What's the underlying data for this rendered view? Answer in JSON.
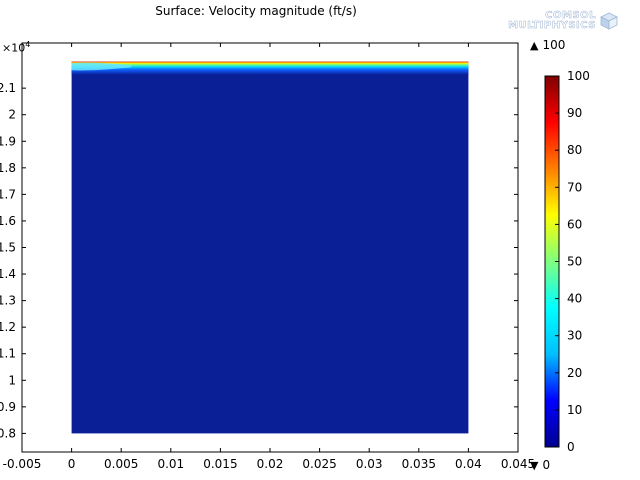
{
  "chart_data": {
    "type": "heatmap",
    "title": "Surface: Velocity magnitude (ft/s)",
    "xlabel": "",
    "ylabel": "",
    "x_ticks": [
      "-0.005",
      "0",
      "0.005",
      "0.01",
      "0.015",
      "0.02",
      "0.025",
      "0.03",
      "0.035",
      "0.04",
      "0.045"
    ],
    "y_ticks": [
      "0.8",
      "0.9",
      "1",
      "1.1",
      "1.2",
      "1.3",
      "1.4",
      "1.5",
      "1.6",
      "1.7",
      "1.8",
      "1.9",
      "2",
      "2.1"
    ],
    "y_multiplier": "×10",
    "y_multiplier_exponent": "4",
    "xlim": [
      -0.005,
      0.045
    ],
    "ylim": [
      0.73,
      2.27
    ],
    "domain_x": [
      0,
      0.04
    ],
    "domain_y": [
      0.8,
      2.2
    ],
    "colormap": "rainbow (jet)",
    "colorbar": {
      "ticks": [
        "0",
        "10",
        "20",
        "30",
        "40",
        "50",
        "60",
        "70",
        "80",
        "90",
        "100"
      ],
      "min": 0,
      "max": 100
    },
    "max_value_label": "100",
    "min_value_label": "0",
    "background_value": 0,
    "high_velocity_band": {
      "y_top": 2.2,
      "y_bottom": 2.15,
      "peak": 100
    },
    "grid": false,
    "colors": {
      "background_field": "#0a1e96",
      "colormap_stops": [
        "#00008f",
        "#0000ff",
        "#00bfff",
        "#00ffff",
        "#7fff7f",
        "#ffff00",
        "#ff7f00",
        "#ff0000",
        "#800000"
      ]
    }
  },
  "logo": {
    "line1": "COMSOL",
    "line2": "MULTIPHYSICS"
  },
  "labels": {
    "max_marker": "100",
    "min_marker": "0"
  }
}
